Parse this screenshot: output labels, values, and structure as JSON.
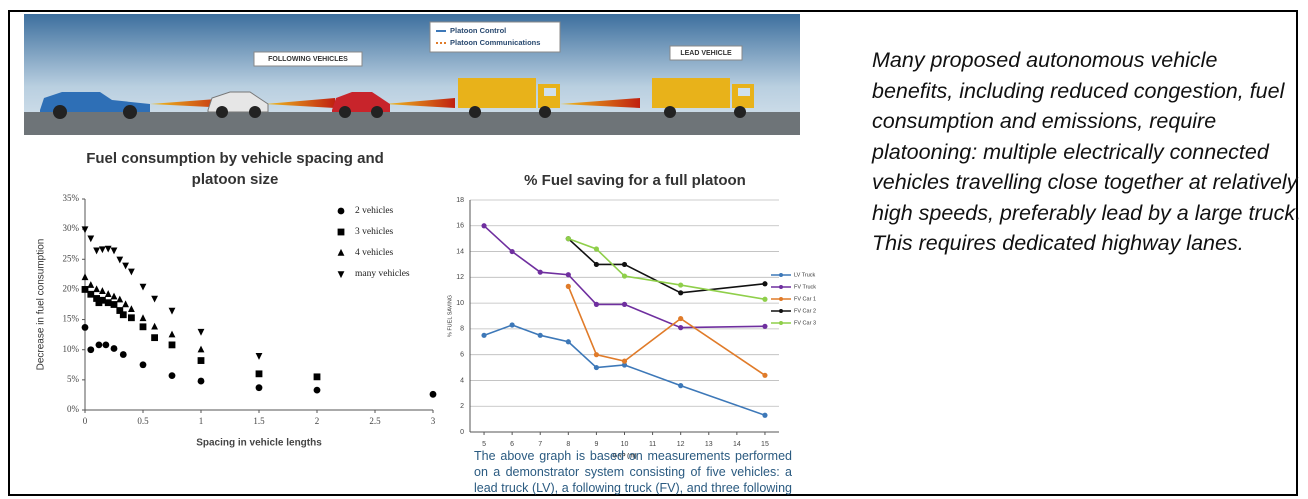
{
  "banner": {
    "legend": [
      "Platoon Control",
      "Platoon Communications"
    ],
    "following_label": "FOLLOWING VEHICLES",
    "lead_label": "LEAD VEHICLE"
  },
  "chart_data": [
    {
      "type": "scatter",
      "title": "Fuel consumption by vehicle spacing and platoon size",
      "x_label": "Spacing in vehicle lengths",
      "y_label": "Decrease in fuel consumption",
      "xlim": [
        0,
        3
      ],
      "ylim": [
        0,
        35
      ],
      "xticks": [
        0,
        0.5,
        1,
        1.5,
        2,
        2.5,
        3
      ],
      "yticks": [
        {
          "value": 0,
          "label": "0%"
        },
        {
          "value": 5,
          "label": "5%"
        },
        {
          "value": 10,
          "label": "10%"
        },
        {
          "value": 15,
          "label": "15%"
        },
        {
          "value": 20,
          "label": "20%"
        },
        {
          "value": 25,
          "label": "25%"
        },
        {
          "value": 30,
          "label": "30%"
        },
        {
          "value": 35,
          "label": "35%"
        }
      ],
      "grid": false,
      "legend": "upper right",
      "series": [
        {
          "name": "2 vehicles",
          "color": "#000000",
          "marker": "circle",
          "x": [
            0,
            0.05,
            0.12,
            0.18,
            0.25,
            0.33,
            0.5,
            0.75,
            1,
            1.5,
            2,
            3
          ],
          "values": [
            13.7,
            10,
            10.8,
            10.8,
            10.2,
            9.2,
            7.5,
            5.7,
            4.8,
            3.7,
            3.3,
            2.6
          ]
        },
        {
          "name": "3 vehicles",
          "color": "#000000",
          "marker": "square",
          "x": [
            0,
            0.05,
            0.1,
            0.12,
            0.15,
            0.2,
            0.25,
            0.3,
            0.33,
            0.4,
            0.5,
            0.6,
            0.75,
            1,
            1.5,
            2
          ],
          "values": [
            20,
            19.2,
            18.5,
            17.8,
            18.2,
            17.8,
            17.5,
            16.5,
            15.8,
            15.3,
            13.8,
            12,
            10.8,
            8.2,
            6,
            5.5
          ]
        },
        {
          "name": "4 vehicles",
          "color": "#000000",
          "marker": "triangle-up",
          "x": [
            0,
            0.05,
            0.1,
            0.15,
            0.2,
            0.25,
            0.3,
            0.35,
            0.4,
            0.5,
            0.6,
            0.75,
            1
          ],
          "values": [
            22,
            20.7,
            20,
            19.7,
            19.2,
            18.8,
            18.3,
            17.5,
            16.7,
            15.2,
            13.8,
            12.5,
            10
          ]
        },
        {
          "name": "many vehicles",
          "color": "#000000",
          "marker": "triangle-down",
          "x": [
            0,
            0.05,
            0.1,
            0.15,
            0.2,
            0.25,
            0.3,
            0.35,
            0.4,
            0.5,
            0.6,
            0.75,
            1,
            1.5
          ],
          "values": [
            30,
            28.5,
            26.5,
            26.7,
            26.8,
            26.5,
            25,
            24,
            23,
            20.5,
            18.5,
            16.5,
            13,
            9
          ]
        }
      ]
    },
    {
      "type": "line",
      "title": "% Fuel saving for a full platoon",
      "x_label": "GAP (m)",
      "y_label": "% FUEL SAVING",
      "xlim": [
        4.5,
        15.5
      ],
      "ylim": [
        0,
        18
      ],
      "xticks": [
        5,
        6,
        7,
        8,
        9,
        10,
        11,
        12,
        13,
        14,
        15
      ],
      "yticks": [
        0,
        2,
        4,
        6,
        8,
        10,
        12,
        14,
        16,
        18
      ],
      "grid": true,
      "legend": "right",
      "series": [
        {
          "name": "LV Truck",
          "color": "#3d78b8",
          "x": [
            5,
            6,
            7,
            8,
            9,
            10,
            12,
            15
          ],
          "values": [
            7.5,
            8.3,
            7.5,
            7,
            5,
            5.2,
            3.6,
            1.3
          ]
        },
        {
          "name": "FV Truck",
          "color": "#6f2f9f",
          "x": [
            5,
            6,
            7,
            8,
            9,
            10,
            12,
            15
          ],
          "values": [
            16,
            14,
            12.4,
            12.2,
            9.9,
            9.9,
            8.1,
            8.2
          ]
        },
        {
          "name": "FV Car 1",
          "color": "#e07b29",
          "x": [
            8,
            9,
            10,
            12,
            15
          ],
          "values": [
            11.3,
            6,
            5.5,
            8.8,
            4.4
          ]
        },
        {
          "name": "FV Car 2",
          "color": "#111111",
          "x": [
            8,
            9,
            10,
            12,
            15
          ],
          "values": [
            15,
            13,
            13,
            10.8,
            11.5
          ]
        },
        {
          "name": "FV Car 3",
          "color": "#8fcf4a",
          "x": [
            8,
            9,
            10,
            12,
            15
          ],
          "values": [
            15,
            14.2,
            12.1,
            11.4,
            10.3
          ]
        }
      ]
    }
  ],
  "caption": "The above graph is based on measurements performed on a demonstrator system consisting of five vehicles: a lead truck (LV), a following truck (FV), and three following cars.",
  "description": "Many proposed autonomous vehicle benefits, including reduced congestion, fuel consumption and emissions, require platooning: multiple electrically connected vehicles travelling close together at relatively high speeds, preferably lead by a large truck. This requires dedicated highway lanes."
}
